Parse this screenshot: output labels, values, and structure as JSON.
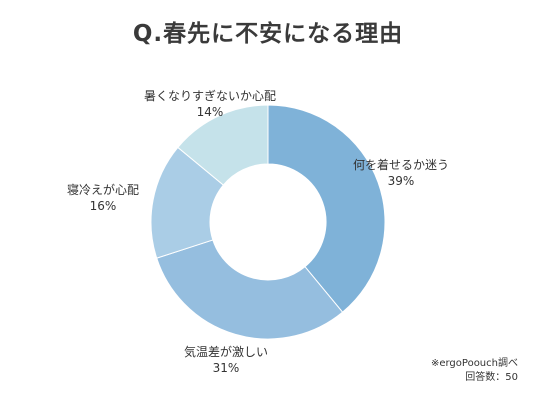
{
  "title": "Q.春先に不安になる理由",
  "chart_data": {
    "type": "pie",
    "donut": true,
    "categories": [
      "何を着せるか迷う",
      "気温差が激しい",
      "寝冷えが心配",
      "暑くなりすぎないか心配"
    ],
    "values": [
      39,
      31,
      16,
      14
    ],
    "labels": [
      "39%",
      "31%",
      "16%",
      "14%"
    ],
    "colors": [
      "#7fb2d8",
      "#95bedf",
      "#aacde6",
      "#c5e2ea"
    ],
    "legend": "direct-labels"
  },
  "source_note": "※ergoPoouch調べ",
  "respondents": "回答数：50"
}
